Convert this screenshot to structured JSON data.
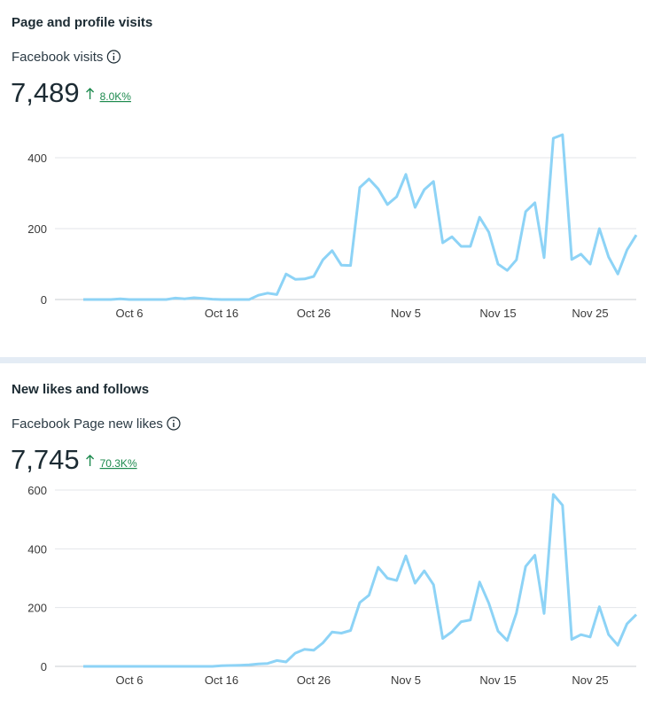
{
  "chart_data": [
    {
      "type": "line",
      "title": "Page and profile visits",
      "subtitle": "Facebook visits",
      "total": "7,489",
      "change": "8.0K%",
      "categories": [
        null,
        null,
        null,
        null,
        null,
        "Oct 6",
        null,
        null,
        null,
        null,
        null,
        null,
        null,
        null,
        null,
        "Oct 16",
        null,
        null,
        null,
        null,
        null,
        null,
        null,
        null,
        null,
        "Oct 26",
        null,
        null,
        null,
        null,
        null,
        null,
        null,
        null,
        null,
        "Nov 5",
        null,
        null,
        null,
        null,
        null,
        null,
        null,
        null,
        null,
        "Nov 15",
        null,
        null,
        null,
        null,
        null,
        null,
        null,
        null,
        null,
        "Nov 25",
        null,
        null,
        null,
        null,
        null
      ],
      "values": [
        0,
        0,
        0,
        0,
        2,
        0,
        0,
        0,
        0,
        0,
        4,
        2,
        5,
        3,
        1,
        0,
        0,
        0,
        0,
        12,
        18,
        14,
        72,
        57,
        58,
        65,
        112,
        138,
        97,
        96,
        316,
        340,
        312,
        268,
        290,
        353,
        260,
        310,
        333,
        160,
        177,
        150,
        150,
        232,
        190,
        100,
        82,
        112,
        248,
        273,
        118,
        455,
        465,
        113,
        128,
        100,
        200,
        120,
        72,
        140,
        182
      ],
      "color": "#8dd3f6",
      "ylim": [
        0,
        480
      ],
      "yticks": [
        0,
        200,
        400
      ],
      "grid": true
    },
    {
      "type": "line",
      "title": "New likes and follows",
      "subtitle": "Facebook Page new likes",
      "total": "7,745",
      "change": "70.3K%",
      "categories": [
        null,
        null,
        null,
        null,
        null,
        "Oct 6",
        null,
        null,
        null,
        null,
        null,
        null,
        null,
        null,
        null,
        "Oct 16",
        null,
        null,
        null,
        null,
        null,
        null,
        null,
        null,
        null,
        "Oct 26",
        null,
        null,
        null,
        null,
        null,
        null,
        null,
        null,
        null,
        "Nov 5",
        null,
        null,
        null,
        null,
        null,
        null,
        null,
        null,
        null,
        "Nov 15",
        null,
        null,
        null,
        null,
        null,
        null,
        null,
        null,
        null,
        "Nov 25",
        null,
        null,
        null,
        null,
        null
      ],
      "values": [
        0,
        0,
        0,
        0,
        0,
        0,
        0,
        0,
        0,
        0,
        0,
        0,
        0,
        0,
        0,
        2,
        3,
        4,
        5,
        8,
        10,
        20,
        15,
        45,
        58,
        55,
        80,
        117,
        113,
        122,
        217,
        242,
        337,
        300,
        292,
        376,
        283,
        325,
        278,
        95,
        118,
        152,
        158,
        287,
        215,
        120,
        88,
        182,
        340,
        378,
        180,
        585,
        548,
        92,
        108,
        100,
        203,
        108,
        72,
        145,
        176
      ],
      "color": "#8dd3f6",
      "ylim": [
        0,
        620
      ],
      "yticks": [
        0,
        200,
        400,
        600
      ],
      "grid": true
    }
  ]
}
